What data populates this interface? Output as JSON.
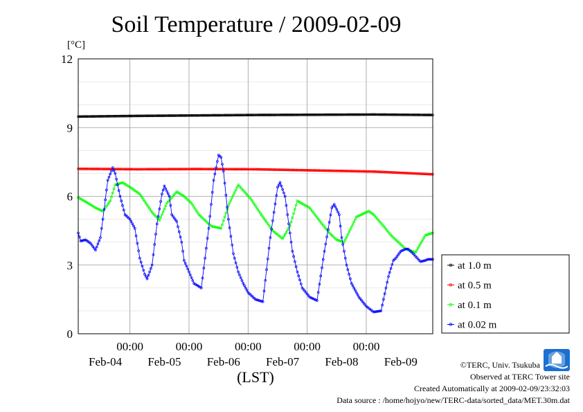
{
  "chart_data": {
    "type": "line",
    "title": "Soil Temperature / 2009-02-09",
    "ylabel": "[°C]",
    "xlabel": "(LST)",
    "ylim": [
      0,
      12
    ],
    "yticks": [
      0,
      3,
      6,
      9,
      12
    ],
    "xlim": [
      0,
      144
    ],
    "grid": true,
    "legend_position": "right",
    "xtick_positions": [
      21,
      45,
      69,
      93,
      117
    ],
    "xtick_time_label": "00:00",
    "x_date_labels": [
      "Feb-04",
      "Feb-05",
      "Feb-06",
      "Feb-07",
      "Feb-08",
      "Feb-09"
    ],
    "x_date_positions": [
      11,
      35,
      59,
      83,
      107,
      131
    ],
    "series": [
      {
        "name": "at 1.0 m",
        "color": "#000000",
        "x": [
          0,
          24,
          48,
          72,
          96,
          120,
          144
        ],
        "values": [
          9.48,
          9.51,
          9.53,
          9.55,
          9.56,
          9.57,
          9.55
        ]
      },
      {
        "name": "at 0.5 m",
        "color": "#ff0000",
        "x": [
          0,
          24,
          48,
          72,
          96,
          120,
          144
        ],
        "values": [
          7.2,
          7.18,
          7.19,
          7.18,
          7.13,
          7.08,
          6.96
        ]
      },
      {
        "name": "at 0.1 m",
        "color": "#00ff00",
        "x": [
          0,
          4,
          7,
          10,
          13,
          15,
          18,
          21,
          25,
          30,
          33,
          36,
          40,
          43,
          46,
          49,
          54,
          58,
          61,
          65,
          70,
          75,
          79,
          83,
          86,
          89,
          94,
          99,
          102,
          105,
          108,
          113,
          118,
          120,
          124,
          127,
          130,
          133,
          137,
          141,
          144
        ],
        "values": [
          5.95,
          5.7,
          5.5,
          5.35,
          5.8,
          6.5,
          6.6,
          6.4,
          6.1,
          5.3,
          4.95,
          5.7,
          6.2,
          6.0,
          5.7,
          5.2,
          4.7,
          4.6,
          5.6,
          6.5,
          5.9,
          5.1,
          4.5,
          4.15,
          4.7,
          5.8,
          5.5,
          4.8,
          4.4,
          4.1,
          4.0,
          5.1,
          5.35,
          5.2,
          4.7,
          4.3,
          4.0,
          3.7,
          3.55,
          4.3,
          4.4
        ]
      },
      {
        "name": "at 0.02 m",
        "color": "#0000ff",
        "x": [
          0,
          1,
          3,
          5,
          7,
          9,
          10,
          12,
          14,
          15,
          17,
          19,
          21,
          23,
          25,
          27,
          28,
          30,
          32,
          34,
          35,
          37,
          38,
          40,
          42,
          43,
          45,
          47,
          50,
          53,
          55,
          57,
          58,
          59,
          61,
          63,
          65,
          67,
          69,
          72,
          75,
          78,
          81,
          82,
          84,
          85,
          87,
          89,
          91,
          94,
          97,
          100,
          103,
          104,
          106,
          107,
          109,
          111,
          114,
          117,
          120,
          123,
          126,
          128,
          129,
          131,
          133,
          134,
          136,
          139,
          141,
          142,
          144
        ],
        "values": [
          4.4,
          4.05,
          4.1,
          3.95,
          3.65,
          4.2,
          5.0,
          6.7,
          7.25,
          7.0,
          6.0,
          5.2,
          5.0,
          4.6,
          3.3,
          2.6,
          2.4,
          3.0,
          4.8,
          6.1,
          6.45,
          6.0,
          5.2,
          4.9,
          4.0,
          3.2,
          2.7,
          2.2,
          2.0,
          4.6,
          6.7,
          7.8,
          7.7,
          7.1,
          5.0,
          3.5,
          2.7,
          2.2,
          1.8,
          1.5,
          1.4,
          4.2,
          6.4,
          6.6,
          6.0,
          5.2,
          3.6,
          2.7,
          2.0,
          1.6,
          1.45,
          3.6,
          5.5,
          5.65,
          5.2,
          4.2,
          3.0,
          2.2,
          1.6,
          1.2,
          0.95,
          1.0,
          2.5,
          3.2,
          3.3,
          3.6,
          3.7,
          3.7,
          3.5,
          3.15,
          3.2,
          3.25,
          3.25
        ]
      }
    ]
  },
  "footer": {
    "credit": "©TERC, Univ. Tsukuba",
    "observed": "Observed at TERC Tower site",
    "created": "Created Automatically at 2009-02-09/23:32:03",
    "source": "Data source : /home/hojyo/new/TERC-data/sorted_data/MET.30m.dat"
  },
  "logo": {
    "text": "TERC",
    "color": "#1a6fd1"
  }
}
